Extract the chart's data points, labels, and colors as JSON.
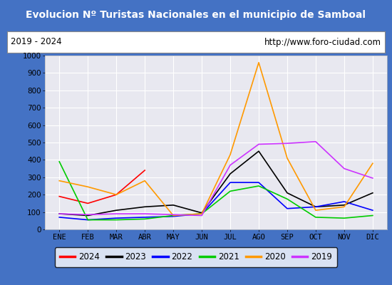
{
  "title": "Evolucion Nº Turistas Nacionales en el municipio de Samboal",
  "subtitle_left": "2019 - 2024",
  "subtitle_right": "http://www.foro-ciudad.com",
  "months": [
    "ENE",
    "FEB",
    "MAR",
    "ABR",
    "MAY",
    "JUN",
    "JUL",
    "AGO",
    "SEP",
    "OCT",
    "NOV",
    "DIC"
  ],
  "ylim": [
    0,
    1000
  ],
  "yticks": [
    0,
    100,
    200,
    300,
    400,
    500,
    600,
    700,
    800,
    900,
    1000
  ],
  "series": {
    "2024": {
      "color": "#ff0000",
      "data": [
        190,
        150,
        200,
        340,
        null,
        null,
        null,
        null,
        null,
        null,
        null,
        null
      ]
    },
    "2023": {
      "color": "#000000",
      "data": [
        90,
        80,
        110,
        130,
        140,
        95,
        320,
        450,
        210,
        130,
        140,
        210
      ]
    },
    "2022": {
      "color": "#0000ff",
      "data": [
        70,
        55,
        65,
        70,
        75,
        90,
        270,
        270,
        120,
        130,
        160,
        110
      ]
    },
    "2021": {
      "color": "#00cc00",
      "data": [
        390,
        55,
        55,
        60,
        80,
        90,
        220,
        250,
        175,
        70,
        65,
        80
      ]
    },
    "2020": {
      "color": "#ff9900",
      "data": [
        280,
        245,
        200,
        280,
        80,
        90,
        430,
        960,
        410,
        110,
        130,
        380
      ]
    },
    "2019": {
      "color": "#cc33ff",
      "data": [
        90,
        85,
        90,
        90,
        85,
        80,
        370,
        490,
        495,
        505,
        350,
        295
      ]
    }
  },
  "title_bgcolor": "#4472c4",
  "title_color": "#ffffff",
  "subtitle_bgcolor": "#ffffff",
  "subtitle_color": "#000000",
  "plot_bgcolor": "#e8e8f0",
  "grid_color": "#ffffff",
  "border_color": "#4472c4"
}
